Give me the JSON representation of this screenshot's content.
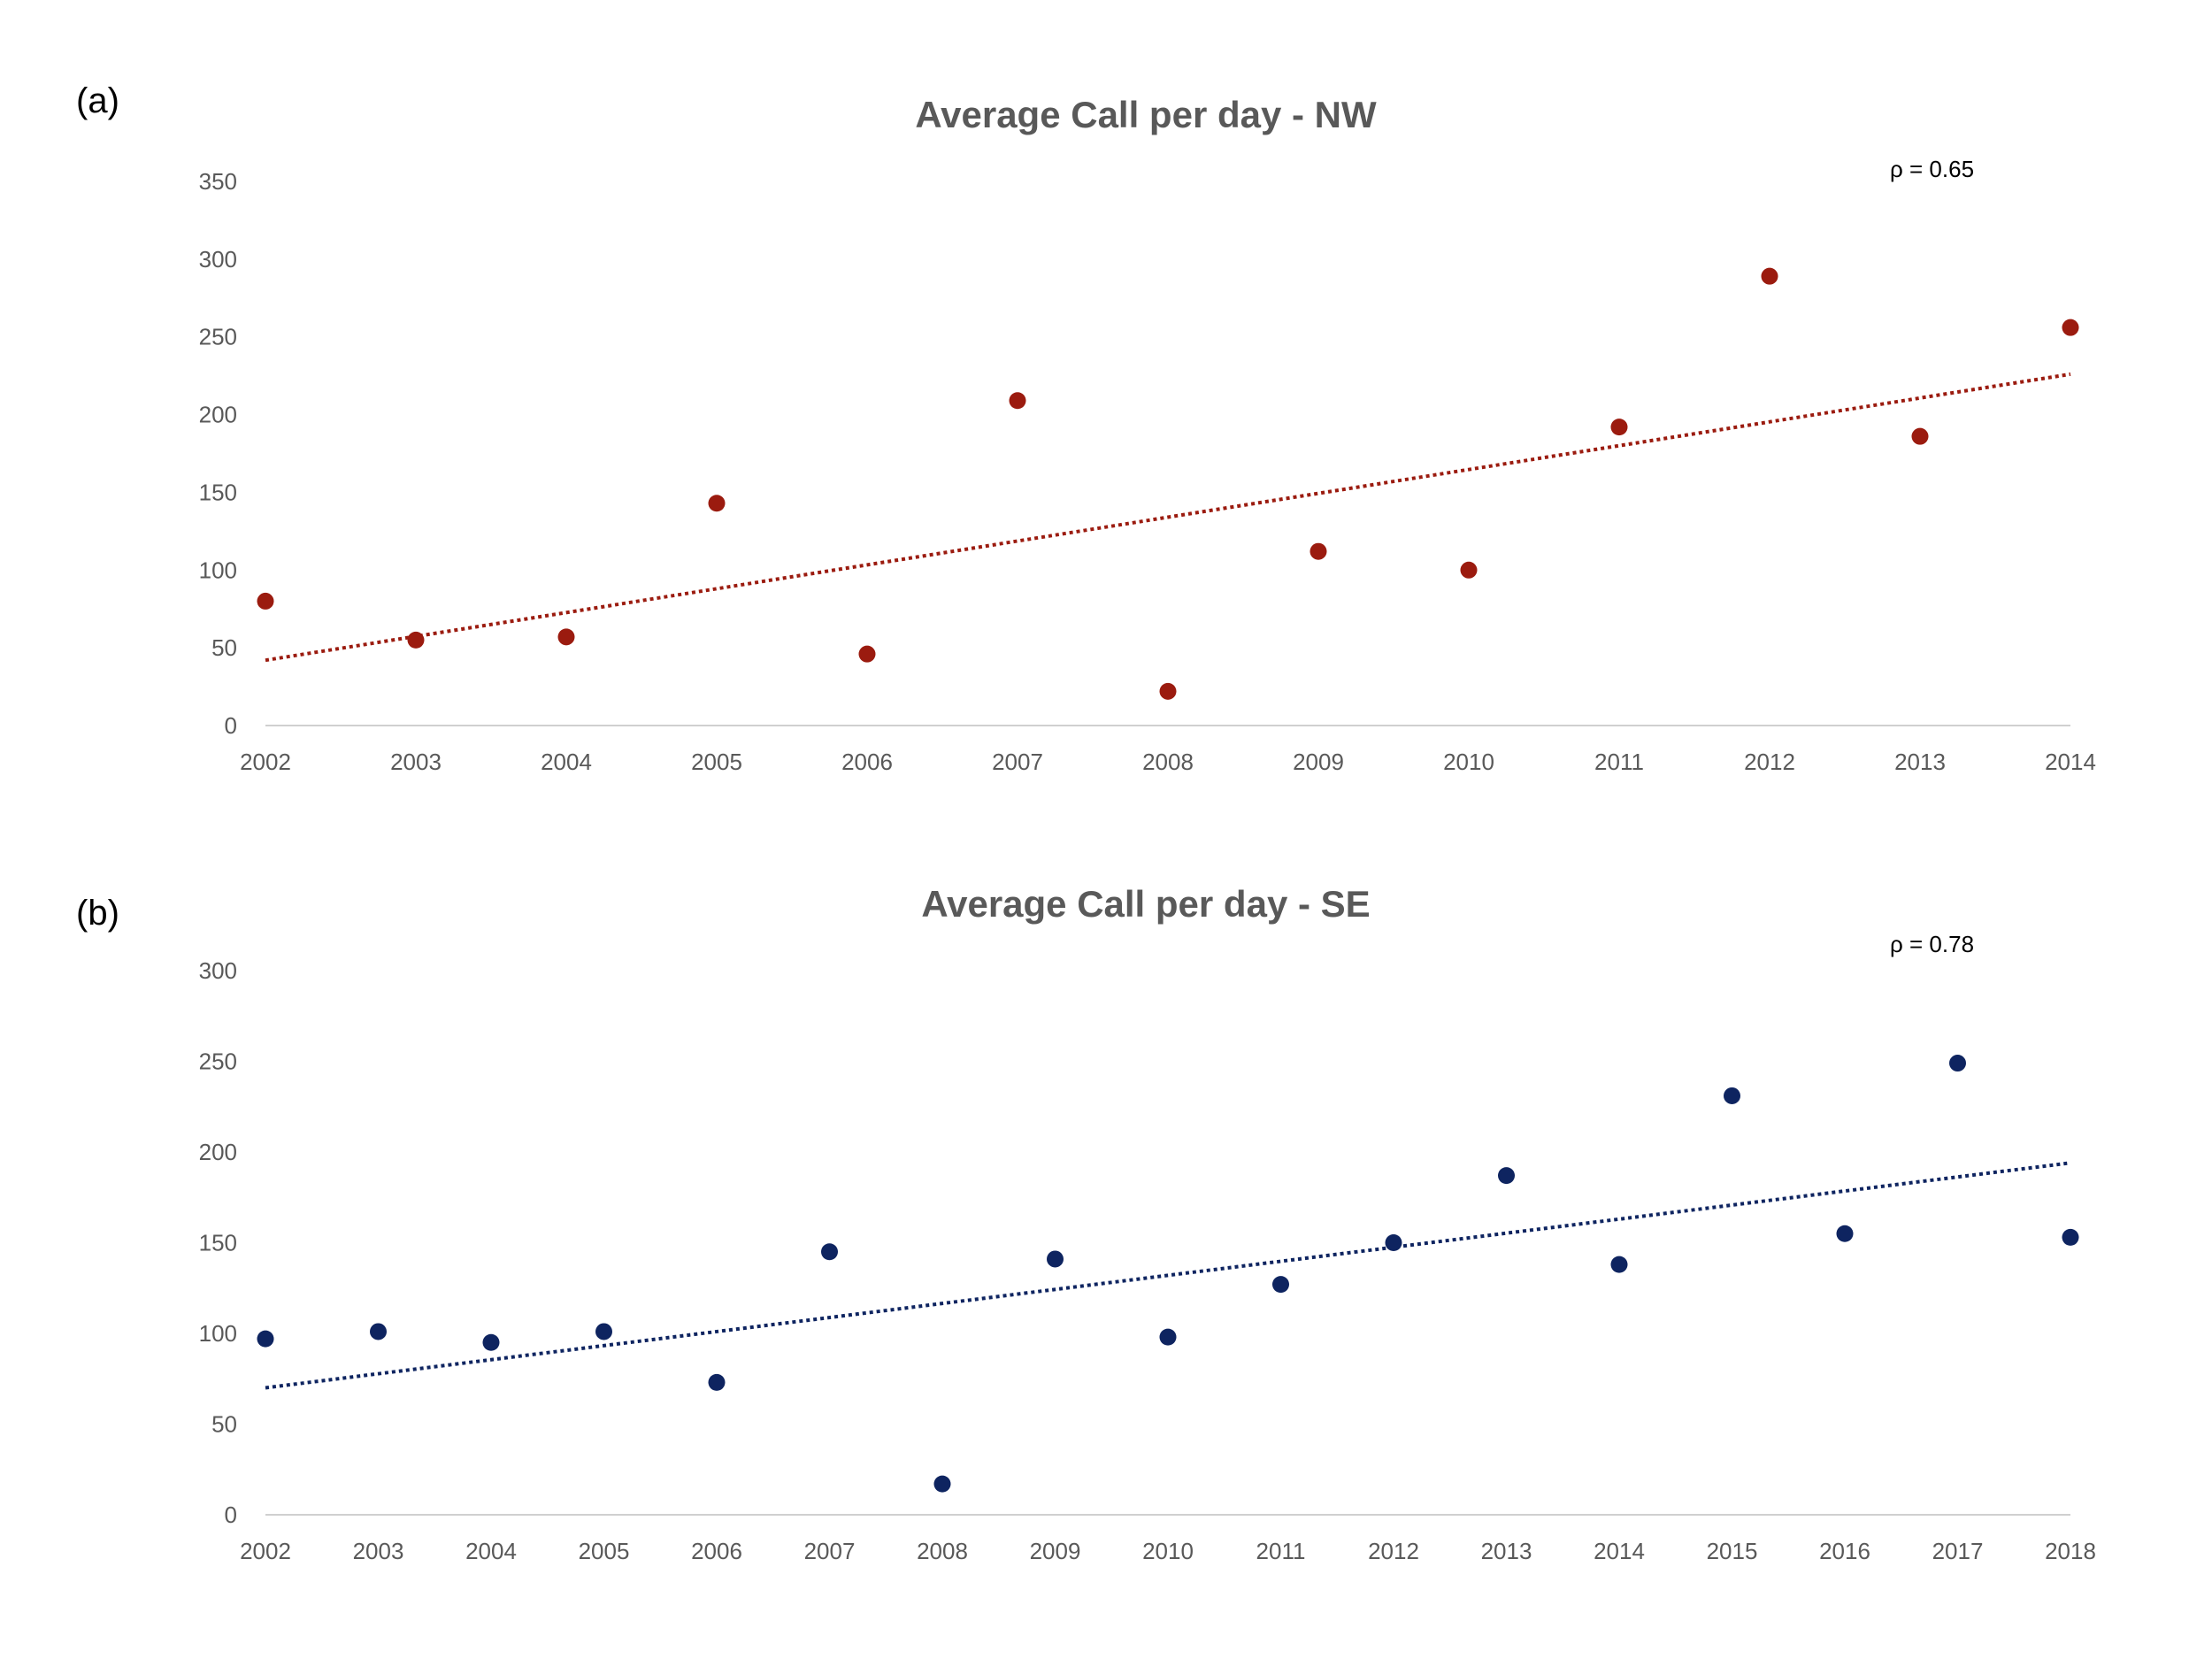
{
  "chart_data": [
    {
      "type": "scatter",
      "panel_label": "(a)",
      "title": "Average Call per day - NW",
      "annotation": "ρ = 0.65",
      "color": "#9B1B0F",
      "trendline": {
        "style": "dotted",
        "start": [
          2002,
          42
        ],
        "end": [
          2014,
          226
        ]
      },
      "x": [
        2002,
        2003,
        2004,
        2005,
        2006,
        2007,
        2008,
        2009,
        2010,
        2011,
        2012,
        2013,
        2014
      ],
      "y": [
        80,
        55,
        57,
        143,
        46,
        209,
        22,
        112,
        100,
        192,
        289,
        186,
        256
      ],
      "x_tick_labels": [
        "2002",
        "2003",
        "2004",
        "2005",
        "2006",
        "2007",
        "2008",
        "2009",
        "2010",
        "2011",
        "2012",
        "2013",
        "2014"
      ],
      "y_ticks": [
        0,
        50,
        100,
        150,
        200,
        250,
        300,
        350
      ],
      "xlim": [
        2002,
        2014
      ],
      "ylim": [
        0,
        350
      ],
      "xlabel": "",
      "ylabel": "",
      "grid": false
    },
    {
      "type": "scatter",
      "panel_label": "(b)",
      "title": "Average Call per day - SE",
      "annotation": "ρ = 0.78",
      "color": "#0E2460",
      "trendline": {
        "style": "dotted",
        "start": [
          2002,
          70
        ],
        "end": [
          2018,
          194
        ]
      },
      "x": [
        2002,
        2003,
        2004,
        2005,
        2006,
        2007,
        2008,
        2009,
        2010,
        2011,
        2012,
        2013,
        2014,
        2015,
        2016,
        2017,
        2018
      ],
      "y": [
        97,
        101,
        95,
        101,
        73,
        145,
        17,
        141,
        98,
        127,
        150,
        187,
        138,
        231,
        155,
        249,
        153
      ],
      "x_tick_labels": [
        "2002",
        "2003",
        "2004",
        "2005",
        "2006",
        "2007",
        "2008",
        "2009",
        "2010",
        "2011",
        "2012",
        "2013",
        "2014",
        "2015",
        "2016",
        "2017",
        "2018"
      ],
      "y_ticks": [
        0,
        50,
        100,
        150,
        200,
        250,
        300
      ],
      "xlim": [
        2002,
        2018
      ],
      "ylim": [
        0,
        300
      ],
      "xlabel": "",
      "ylabel": "",
      "grid": false
    }
  ]
}
